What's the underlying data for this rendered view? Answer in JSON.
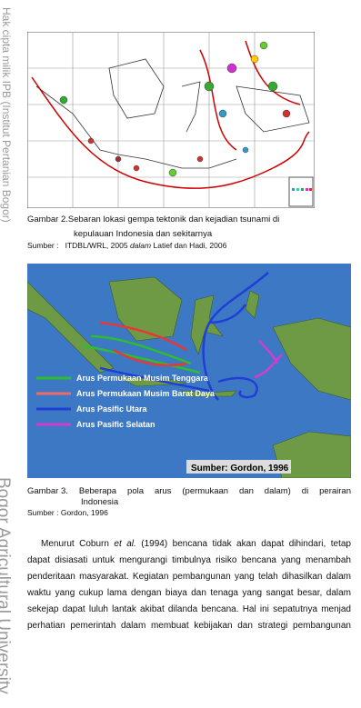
{
  "watermark": {
    "top": "Hak cipta milik IPB (Institut Pertanian Bogor)",
    "bottom": "Bogor Agricultural University"
  },
  "figure2": {
    "caption_label": "Gambar 2.",
    "caption_line1": "Sebaran lokasi gempa tektonik dan kejadian tsunami di",
    "caption_line2": "kepulauan Indonesia dan sekitarnya",
    "source_label": "Sumber :",
    "source_text": "ITDBL/WRL, 2005",
    "source_italic": "dalam",
    "source_rest": "Latief dan Hadi, 2006"
  },
  "figure3": {
    "legend": [
      "Arus Permukaan Musim Tenggara",
      "Arus Permukaan Musim Barat Daya",
      "Arus Pasific Utara",
      "Arus Pasific Selatan"
    ],
    "map_source": "Sumber: Gordon, 1996",
    "caption_label": "Gambar 3.",
    "caption_line1": "Beberapa  pola  arus  (permukaan  dan  dalam)  di  perairan",
    "caption_line2": "Indonesia",
    "source": "Sumber : Gordon, 1996"
  },
  "paragraph": {
    "line1_a": "Menurut Coburn",
    "line1_italic": "et al.",
    "line1_b": "(1994) bencana tidak akan dapat dihindari, tetap",
    "lines": [
      "dapat disiasati untuk mengurangi timbulnya risiko bencana yang menambah",
      "penderitaan masyarakat. Kegiatan pembangunan yang telah dihasilkan dalam",
      "waktu yang cukup lama dengan biaya dan tenaga yang sangat besar, dalam",
      "sekejap dapat luluh lantak akibat dilanda bencana. Hal ini sepatutnya menjad",
      "perhatian pemerintah dalam membuat kebijakan dan strategi pembangunan"
    ]
  }
}
